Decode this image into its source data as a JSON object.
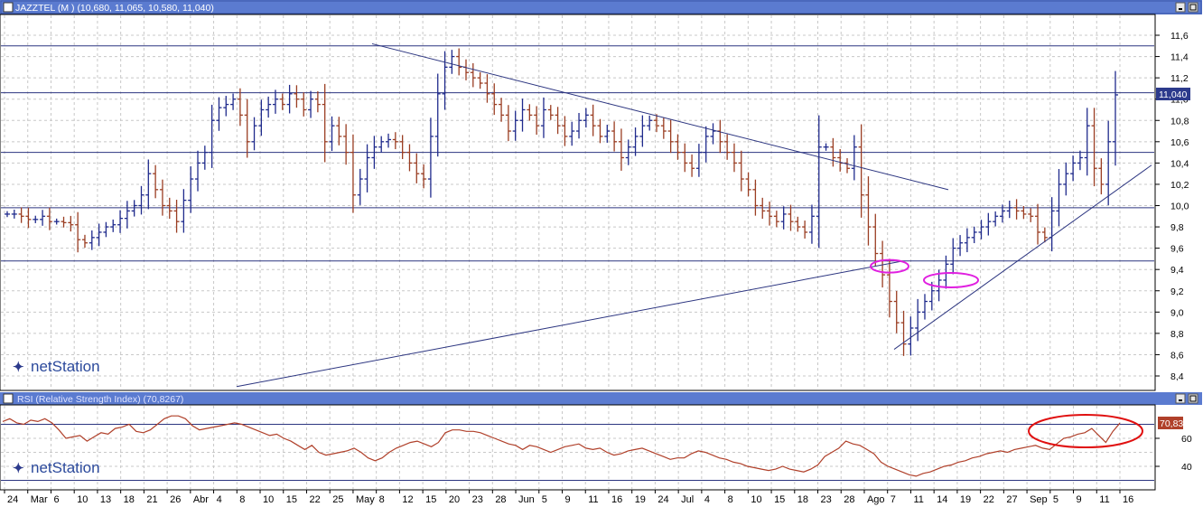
{
  "price_panel": {
    "title": "JAZZTEL (M ) (10,680, 11,065, 10,580, 11,040)",
    "last_value_label": "11,040",
    "watermark": "netStation"
  },
  "rsi_panel": {
    "title": "RSI (Relative Strength Index) (70,8267)",
    "last_value_label": "70,83",
    "watermark": "netStation"
  },
  "x_axis": {
    "labels": [
      "24",
      "Mar",
      "6",
      "10",
      "13",
      "18",
      "21",
      "26",
      "Abr",
      "4",
      "8",
      "10",
      "15",
      "22",
      "25",
      "May",
      "8",
      "12",
      "15",
      "20",
      "23",
      "28",
      "Jun",
      "5",
      "9",
      "11",
      "16",
      "19",
      "24",
      "Jul",
      "4",
      "8",
      "10",
      "15",
      "18",
      "23",
      "28",
      "Ago",
      "7",
      "11",
      "14",
      "19",
      "22",
      "27",
      "Sep",
      "5",
      "9",
      "11",
      "16"
    ]
  },
  "chart_data": [
    {
      "type": "bar",
      "subtype": "ohlc",
      "title": "JAZZTEL (M ) (10,680, 11,065, 10,580, 11,040)",
      "ylim": [
        8.3,
        11.7
      ],
      "yticks": [
        "8,4",
        "8,6",
        "8,8",
        "9,0",
        "9,2",
        "9,4",
        "9,6",
        "9,8",
        "10,0",
        "10,2",
        "10,4",
        "10,6",
        "10,8",
        "11,0",
        "11,2",
        "11,4",
        "11,6"
      ],
      "last": {
        "open": 10.68,
        "high": 11.065,
        "low": 10.58,
        "close": 11.04
      },
      "close_approx": [
        9.92,
        9.92,
        9.9,
        9.87,
        9.87,
        9.9,
        9.85,
        9.85,
        9.84,
        9.82,
        9.68,
        9.65,
        9.7,
        9.75,
        9.8,
        9.82,
        9.88,
        9.95,
        10.0,
        10.1,
        10.3,
        10.15,
        10.0,
        9.95,
        9.85,
        10.05,
        10.25,
        10.4,
        10.5,
        10.8,
        10.92,
        10.95,
        11.0,
        10.85,
        10.6,
        10.75,
        10.9,
        10.95,
        11.0,
        10.95,
        11.05,
        11.0,
        10.9,
        11.0,
        10.95,
        10.6,
        10.75,
        10.65,
        10.5,
        10.1,
        10.25,
        10.45,
        10.55,
        10.6,
        10.62,
        10.6,
        10.5,
        10.4,
        10.3,
        10.25,
        10.65,
        11.05,
        11.3,
        11.4,
        11.3,
        11.25,
        11.2,
        11.15,
        11.05,
        10.95,
        10.85,
        10.7,
        10.8,
        10.9,
        10.85,
        10.75,
        10.9,
        10.85,
        10.75,
        10.65,
        10.7,
        10.8,
        10.85,
        10.75,
        10.65,
        10.7,
        10.6,
        10.45,
        10.55,
        10.65,
        10.75,
        10.8,
        10.75,
        10.7,
        10.6,
        10.5,
        10.4,
        10.35,
        10.5,
        10.65,
        10.7,
        10.6,
        10.5,
        10.4,
        10.25,
        10.15,
        10.0,
        9.95,
        9.9,
        9.85,
        9.92,
        9.85,
        9.8,
        9.75,
        9.9,
        10.55,
        10.55,
        10.45,
        10.4,
        10.35,
        10.55,
        10.1,
        9.8,
        9.55,
        9.35,
        9.1,
        8.9,
        8.7,
        8.85,
        9.0,
        9.1,
        9.2,
        9.3,
        9.45,
        9.6,
        9.65,
        9.7,
        9.75,
        9.8,
        9.85,
        9.9,
        9.95,
        9.98,
        9.95,
        9.92,
        9.9,
        9.75,
        9.7,
        9.95,
        10.2,
        10.3,
        10.4,
        10.45,
        10.75,
        10.35,
        10.2,
        10.6,
        11.04
      ]
    },
    {
      "type": "line",
      "title": "RSI (Relative Strength Index) (70,8267)",
      "ylim": [
        30,
        82
      ],
      "yticks": [
        "40",
        "60"
      ],
      "levels": [
        30,
        70
      ],
      "last": 70.83,
      "values": [
        72,
        74,
        71,
        70,
        73,
        72,
        74,
        71,
        66,
        60,
        61,
        62,
        58,
        61,
        64,
        63,
        67,
        68,
        70,
        65,
        64,
        66,
        70,
        74,
        76,
        76,
        74,
        69,
        66,
        67,
        68,
        69,
        70,
        71,
        70,
        68,
        66,
        64,
        62,
        63,
        60,
        58,
        55,
        52,
        55,
        50,
        48,
        49,
        50,
        51,
        53,
        50,
        46,
        44,
        46,
        50,
        53,
        55,
        57,
        58,
        56,
        54,
        57,
        64,
        66,
        66,
        65,
        65,
        64,
        62,
        60,
        58,
        56,
        55,
        52,
        55,
        54,
        52,
        50,
        52,
        54,
        55,
        56,
        53,
        52,
        53,
        50,
        48,
        49,
        51,
        52,
        53,
        51,
        49,
        47,
        45,
        46,
        46,
        49,
        51,
        50,
        48,
        46,
        45,
        43,
        42,
        40,
        39,
        38,
        37,
        38,
        40,
        38,
        37,
        36,
        38,
        41,
        47,
        50,
        53,
        58,
        56,
        55,
        52,
        49,
        43,
        40,
        38,
        36,
        34,
        33,
        35,
        36,
        38,
        40,
        41,
        43,
        44,
        46,
        47,
        49,
        50,
        51,
        50,
        52,
        53,
        54,
        55,
        53,
        52,
        56,
        60,
        61,
        63,
        64,
        67,
        62,
        57,
        65,
        70.83
      ]
    },
    {
      "type": "annotations",
      "items": [
        "descending trendline",
        "ascending trendline",
        "support trendline",
        "horizontal levels 9,48 / 9,98 / 10,50 / 11,06 / 11,50",
        "ellipse marks x3"
      ]
    }
  ],
  "colors": {
    "up": "#1f2a8c",
    "down": "#9a3d22",
    "rsi_line": "#b0402a",
    "level_line": "#2c3580",
    "grid": "#c8c8c8",
    "ellipse_magenta": "#e020e0",
    "ellipse_red": "#e01010",
    "title_bar": "#5b7bd0"
  },
  "icons": [
    "minimize-icon",
    "maximize-icon",
    "close-icon"
  ]
}
